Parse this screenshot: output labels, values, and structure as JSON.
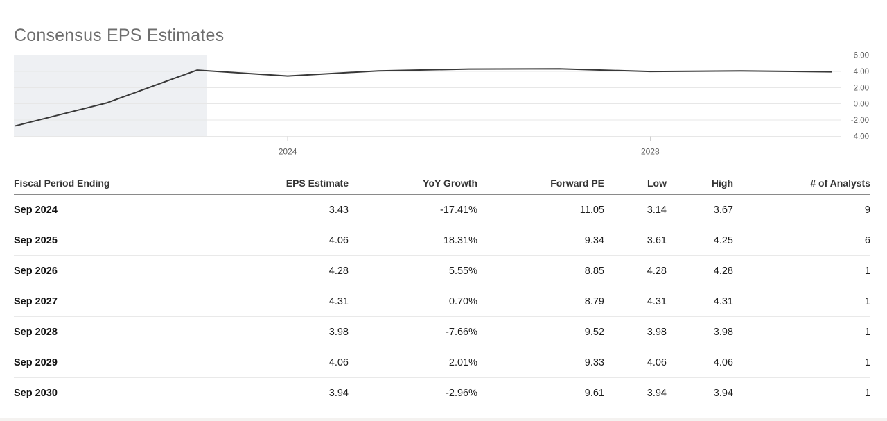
{
  "chart_data": {
    "type": "line",
    "title": "Consensus EPS Estimates",
    "xlabel": "",
    "ylabel": "",
    "x": [
      2021,
      2022,
      2023,
      2024,
      2025,
      2026,
      2027,
      2028,
      2029,
      2030
    ],
    "series": [
      {
        "name": "EPS",
        "values": [
          -2.7,
          0.1,
          4.15,
          3.43,
          4.06,
          4.28,
          4.31,
          3.98,
          4.06,
          3.94
        ]
      }
    ],
    "xlim": [
      2020.98,
      2030.1
    ],
    "ylim": [
      -4,
      6
    ],
    "grid": true,
    "y_axis_position": "right",
    "historical_shaded_x_range": [
      2020.98,
      2023.11
    ],
    "x_ticks": [
      {
        "value": 2024,
        "label": "2024"
      },
      {
        "value": 2028,
        "label": "2028"
      }
    ],
    "y_ticks": [
      {
        "value": 6,
        "label": "6.00"
      },
      {
        "value": 4,
        "label": "4.00"
      },
      {
        "value": 2,
        "label": "2.00"
      },
      {
        "value": 0,
        "label": "0.00"
      },
      {
        "value": -2,
        "label": "-2.00"
      },
      {
        "value": -4,
        "label": "-4.00"
      }
    ],
    "colors": {
      "line": "#383838",
      "shaded_region": "#eef0f3",
      "gridline": "#e7e7e7",
      "tick_mark": "#cfcfcf",
      "axis_label": "#5d5d5d"
    }
  },
  "table": {
    "columns": [
      {
        "key": "fiscal-period-ending",
        "label": "Fiscal Period Ending",
        "align": "left"
      },
      {
        "key": "eps-estimate",
        "label": "EPS Estimate",
        "align": "right"
      },
      {
        "key": "yoy-growth",
        "label": "YoY Growth",
        "align": "right"
      },
      {
        "key": "forward-pe",
        "label": "Forward PE",
        "align": "right"
      },
      {
        "key": "low",
        "label": "Low",
        "align": "right"
      },
      {
        "key": "high",
        "label": "High",
        "align": "right"
      },
      {
        "key": "num-analysts",
        "label": "# of Analysts",
        "align": "right"
      }
    ],
    "rows": [
      {
        "period": "Sep 2024",
        "values": [
          "3.43",
          "-17.41%",
          "11.05",
          "3.14",
          "3.67",
          "9"
        ]
      },
      {
        "period": "Sep 2025",
        "values": [
          "4.06",
          "18.31%",
          "9.34",
          "3.61",
          "4.25",
          "6"
        ]
      },
      {
        "period": "Sep 2026",
        "values": [
          "4.28",
          "5.55%",
          "8.85",
          "4.28",
          "4.28",
          "1"
        ]
      },
      {
        "period": "Sep 2027",
        "values": [
          "4.31",
          "0.70%",
          "8.79",
          "4.31",
          "4.31",
          "1"
        ]
      },
      {
        "period": "Sep 2028",
        "values": [
          "3.98",
          "-7.66%",
          "9.52",
          "3.98",
          "3.98",
          "1"
        ]
      },
      {
        "period": "Sep 2029",
        "values": [
          "4.06",
          "2.01%",
          "9.33",
          "4.06",
          "4.06",
          "1"
        ]
      },
      {
        "period": "Sep 2030",
        "values": [
          "3.94",
          "-2.96%",
          "9.61",
          "3.94",
          "3.94",
          "1"
        ]
      }
    ]
  }
}
